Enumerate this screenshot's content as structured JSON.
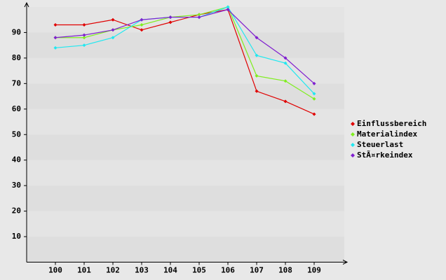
{
  "chart_data": {
    "type": "line",
    "categories": [
      "100",
      "101",
      "102",
      "103",
      "104",
      "105",
      "106",
      "107",
      "108",
      "109"
    ],
    "series": [
      {
        "name": "Einflussbereich",
        "color": "#e00000",
        "values": [
          93,
          93,
          95,
          91,
          94,
          97,
          99,
          67,
          63,
          58
        ]
      },
      {
        "name": "Materialindex",
        "color": "#80ee20",
        "values": [
          88,
          88,
          91,
          93,
          96,
          97,
          100,
          73,
          71,
          64
        ]
      },
      {
        "name": "Steuerlast",
        "color": "#20e8f0",
        "values": [
          84,
          85,
          88,
          95,
          96,
          96,
          100,
          81,
          78,
          66
        ]
      },
      {
        "name": "StÃ¤rkeindex",
        "color": "#8020d0",
        "values": [
          88,
          89,
          91,
          95,
          96,
          96,
          99,
          88,
          80,
          70
        ]
      }
    ],
    "ylim": [
      0,
      100
    ],
    "yticks": [
      10,
      20,
      30,
      40,
      50,
      60,
      70,
      80,
      90
    ],
    "legend": "right"
  }
}
